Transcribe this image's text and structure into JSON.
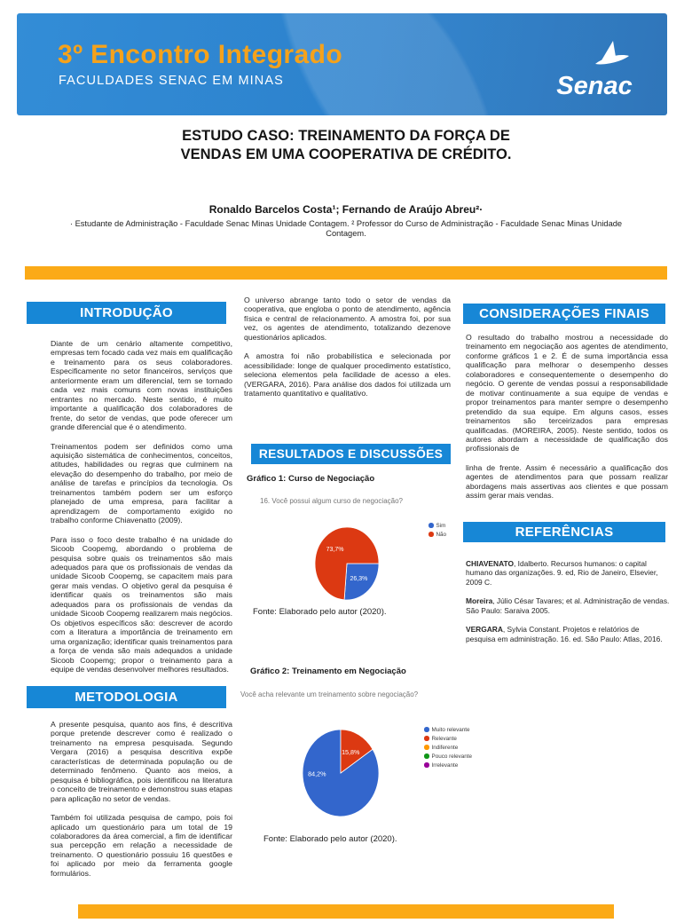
{
  "poster": {
    "banner": {
      "event_title": "3º Encontro Integrado",
      "event_subtitle": "FACULDADES SENAC EM MINAS",
      "logo_text": "Senac"
    },
    "title": "ESTUDO CASO: TREINAMENTO DA FORÇA DE VENDAS EM UMA COOPERATIVA DE CRÉDITO.",
    "authors": "Ronaldo Barcelos Costa¹; Fernando de Araújo Abreu²·",
    "affiliations": "· Estudante de Administração - Faculdade Senac Minas Unidade Contagem. ² Professor do Curso de Administração - Faculdade Senac Minas Unidade Contagem.",
    "sections": {
      "introducao": {
        "heading": "INTRODUÇÃO",
        "paragraphs": [
          "Diante de um cenário altamente competitivo, empresas tem focado cada vez mais em qualificação e treinamento para os seus colaboradores. Especificamente no setor financeiros, serviços que anteriormente eram um diferencial, tem se tornado cada vez mais comuns com novas instituições entrantes no mercado. Neste sentido, é muito importante a qualificação dos colaboradores de frente, do setor de vendas, que pode oferecer um grande diferencial que é o atendimento.",
          "Treinamentos podem ser definidos como uma aquisição sistemática de conhecimentos, conceitos, atitudes, habilidades ou regras que culminem na elevação do desempenho do trabalho, por meio de análise de tarefas e princípios da tecnologia. Os treinamentos também podem ser um esforço planejado de uma empresa, para facilitar a aprendizagem de comportamento exigido no trabalho conforme Chiavenatto (2009).",
          "Para isso o foco deste trabalho é na unidade do Sicoob Coopemg, abordando o problema de pesquisa sobre quais os treinamentos são mais adequados para que os profissionais de vendas da unidade Sicoob Coopemg, se capacitem mais para gerar mais vendas. O objetivo geral da pesquisa é identificar quais os treinamentos são mais adequados para os profissionais de vendas da unidade Sicoob Coopemg realizarem mais negócios. Os objetivos específicos são: descrever de acordo com a literatura a importância de treinamento em uma organização; identificar quais treinamentos para a força de venda são mais adequados a unidade Sicoob Coopemg; propor o treinamento para a equipe de vendas desenvolver melhores resultados."
        ]
      },
      "metodologia": {
        "heading": "METODOLOGIA",
        "paragraphs": [
          "A presente pesquisa, quanto aos fins, é descritiva porque pretende descrever como é realizado o treinamento na empresa pesquisada. Segundo Vergara (2016) a pesquisa descritiva expõe características de determinada população ou de determinado fenômeno. Quanto aos meios, a pesquisa é bibliográfica, pois identificou na literatura o conceito de treinamento e demonstrou suas etapas para aplicação no setor de vendas.",
          "Também foi utilizada pesquisa de campo, pois foi aplicado um questionário para um total de 19 colaboradores da área comercial, a fim de identificar sua percepção em relação a necessidade de treinamento. O questionário possuiu 16 questões e foi aplicado por meio da ferramenta google formulários."
        ]
      },
      "universo": {
        "paragraphs": [
          "O universo abrange tanto todo o setor de vendas da cooperativa, que engloba o ponto de atendimento, agência física e central de relacionamento. A amostra foi, por sua vez, os agentes de atendimento, totalizando dezenove questionários aplicados.",
          "A amostra foi não probabilística e selecionada por acessibilidade: longe de qualquer procedimento estatístico, seleciona elementos pela facilidade de acesso a eles. (VERGARA, 2016). Para análise dos dados foi utilizada um tratamento quantitativo e qualitativo."
        ]
      },
      "resultados": {
        "heading": "RESULTADOS E DISCUSSÕES"
      },
      "consideracoes": {
        "heading": "CONSIDERAÇÕES FINAIS",
        "paragraphs": [
          "O resultado do trabalho mostrou a necessidade do treinamento em negociação aos agentes de atendimento, conforme gráficos 1 e 2. É de suma importância essa qualificação para melhorar o desempenho desses colaboradores e consequentemente o desempenho do negócio. O gerente de vendas possui a responsabilidade de motivar continuamente a sua equipe de vendas e propor treinamentos para manter sempre o desempenho pretendido da sua equipe. Em alguns casos, esses treinamentos são terceirizados para empresas qualificadas. (MOREIRA, 2005). Neste sentido, todos os autores abordam a necessidade de qualificação dos profissionais de",
          "linha de frente. Assim é necessário a qualificação dos agentes de atendimentos para que possam realizar abordagens mais assertivas aos clientes e que possam assim gerar mais vendas."
        ]
      },
      "referencias": {
        "heading": "REFERÊNCIAS",
        "entries": [
          {
            "author": "CHIAVENATO",
            "text": ", Idalberto. Recursos humanos: o capital humano das organizações. 9. ed, Rio de Janeiro, Elsevier, 2009 C."
          },
          {
            "author": "Moreira",
            "text": ", Júlio César Tavares; et al. Administração de vendas. São Paulo: Saraiva 2005."
          },
          {
            "author": "VERGARA",
            "text": ", Sylvia Constant. Projetos e relatórios de pesquisa em administração. 16. ed. São Paulo: Atlas, 2016."
          }
        ]
      }
    },
    "colors": {
      "banner_blue": "#1473c7",
      "accent_orange": "#fbaa17",
      "section_blue": "#1787d6"
    }
  },
  "chart_data": [
    {
      "type": "pie",
      "title": "Gráfico 1: Curso de Negociação",
      "question": "16. Você possui algum curso de negociação?",
      "labels": [
        "Sim",
        "Não"
      ],
      "values": [
        26.3,
        73.7
      ],
      "display_labels": [
        "26,3%",
        "73,7%"
      ],
      "colors": [
        "#3366cc",
        "#dc3912"
      ],
      "start_angle_deg": 90,
      "legend_position": "right",
      "source": "Fonte: Elaborado pelo autor (2020)."
    },
    {
      "type": "pie",
      "title": "Gráfico 2: Treinamento em Negociação",
      "question": "Você acha relevante um treinamento sobre negociação?",
      "labels": [
        "Muito relevante",
        "Relevante",
        "Indiferente",
        "Pouco relevante",
        "Irrelevante"
      ],
      "values": [
        84.2,
        15.8,
        0,
        0,
        0
      ],
      "display_labels": [
        "84,2%",
        "15,8%",
        "",
        "",
        ""
      ],
      "colors": [
        "#3366cc",
        "#dc3912",
        "#ff9900",
        "#109618",
        "#990099"
      ],
      "start_angle_deg": 56.88,
      "legend_position": "right",
      "source": "Fonte: Elaborado pelo autor (2020)."
    }
  ]
}
